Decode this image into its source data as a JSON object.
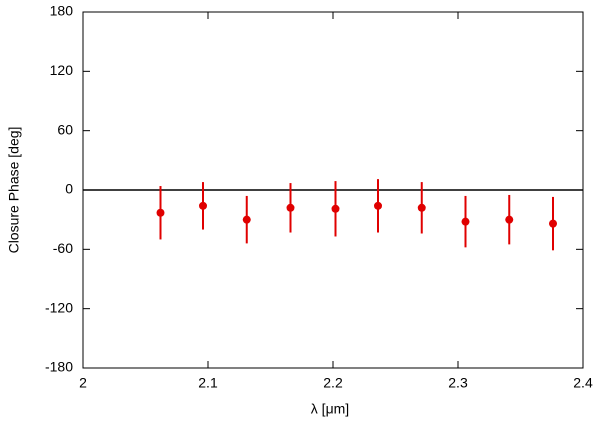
{
  "chart_data": {
    "type": "scatter",
    "xlabel": "λ [μm]",
    "ylabel": "Closure Phase [deg]",
    "x": [
      2.062,
      2.096,
      2.131,
      2.166,
      2.202,
      2.236,
      2.271,
      2.306,
      2.341,
      2.376
    ],
    "values": [
      -23,
      -16,
      -30,
      -18,
      -19,
      -16,
      -18,
      -32,
      -30,
      -34
    ],
    "errors": [
      27,
      24,
      24,
      25,
      28,
      27,
      26,
      26,
      25,
      27
    ],
    "color": "#e00000",
    "xlim": [
      2,
      2.4
    ],
    "xticks": [
      2,
      2.1,
      2.2,
      2.3,
      2.4
    ],
    "ylim": [
      -180,
      180
    ],
    "yticks": [
      -180,
      -120,
      -60,
      0,
      60,
      120,
      180
    ],
    "zero_line": true
  }
}
